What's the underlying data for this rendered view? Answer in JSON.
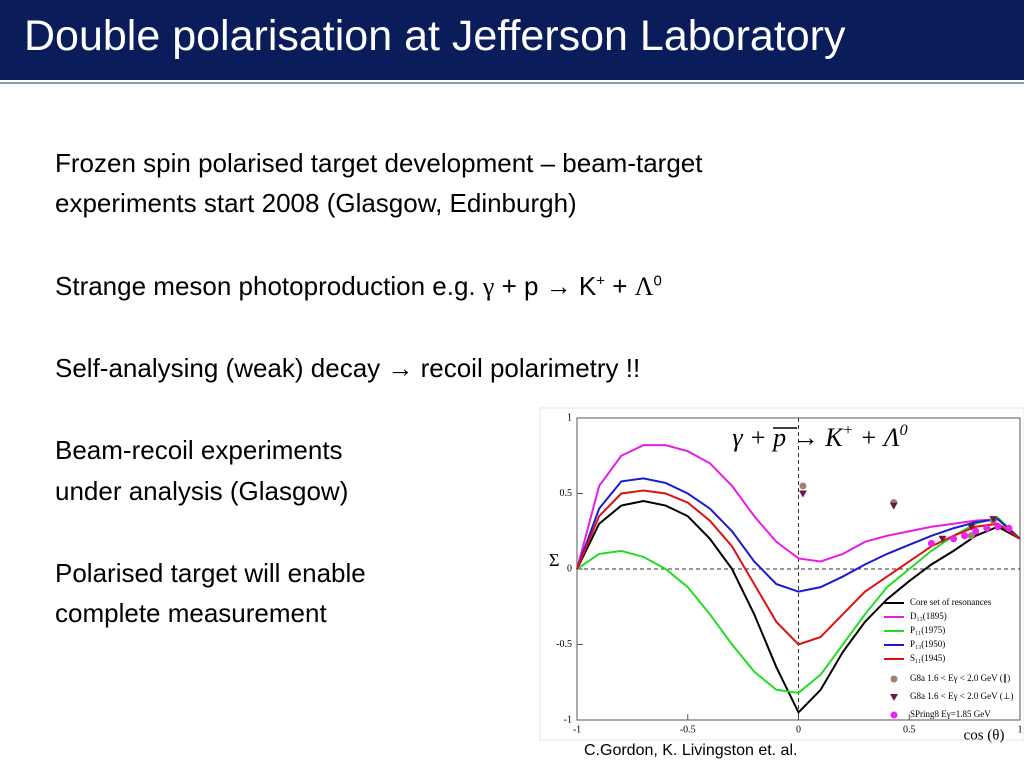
{
  "slide": {
    "title": "Double polarisation at Jefferson Laboratory",
    "paragraphs": [
      [
        [
          "Frozen spin polarised target development  – beam-target"
        ],
        [
          "experiments start 2008 (Glasgow, Edinburgh)"
        ]
      ],
      [
        [
          "Strange meson photoproduction e.g. ",
          "γ",
          " + p → K",
          "+",
          " + ",
          "Λ",
          "0"
        ]
      ],
      [
        [
          "Self-analysing (weak) decay → recoil polarimetry !!"
        ]
      ],
      [
        [
          "Beam-recoil experiments"
        ],
        [
          "under analysis (Glasgow)"
        ]
      ],
      [
        [
          "Polarised target will enable"
        ],
        [
          "complete measurement"
        ]
      ]
    ],
    "caption": "C.Gordon, K. Livingston et. al."
  },
  "chart_data": {
    "type": "line",
    "title_parts": [
      "γ",
      " + p → ",
      "K",
      "+",
      " + ",
      "Λ",
      "0"
    ],
    "ylabel": "Σ",
    "xlabel": "cos (θ)",
    "xlim": [
      -1,
      1
    ],
    "ylim": [
      -1,
      1
    ],
    "xticks": [
      -1,
      -0.5,
      0,
      0.5,
      1
    ],
    "yticks": [
      -1,
      -0.5,
      0,
      0.5,
      1
    ],
    "x": [
      -1,
      -0.9,
      -0.8,
      -0.7,
      -0.6,
      -0.5,
      -0.4,
      -0.3,
      -0.2,
      -0.1,
      0,
      0.1,
      0.2,
      0.3,
      0.4,
      0.5,
      0.6,
      0.7,
      0.8,
      0.9,
      1
    ],
    "series": [
      {
        "name": "Core set of resonances",
        "color": "#000000",
        "values": [
          0,
          0.3,
          0.42,
          0.45,
          0.42,
          0.35,
          0.2,
          0.0,
          -0.3,
          -0.65,
          -0.95,
          -0.8,
          -0.55,
          -0.35,
          -0.2,
          -0.08,
          0.03,
          0.12,
          0.22,
          0.28,
          0.2
        ]
      },
      {
        "name": "D₁₃(1895)",
        "color": "#e61ee6",
        "values": [
          0,
          0.55,
          0.75,
          0.82,
          0.82,
          0.78,
          0.7,
          0.55,
          0.35,
          0.18,
          0.07,
          0.05,
          0.1,
          0.18,
          0.22,
          0.25,
          0.28,
          0.3,
          0.32,
          0.33,
          0.2
        ]
      },
      {
        "name": "P₁₁(1975)",
        "color": "#22dd22",
        "values": [
          0,
          0.1,
          0.12,
          0.08,
          0,
          -0.12,
          -0.3,
          -0.5,
          -0.68,
          -0.8,
          -0.82,
          -0.7,
          -0.5,
          -0.3,
          -0.12,
          0,
          0.12,
          0.22,
          0.3,
          0.34,
          0.2
        ]
      },
      {
        "name": "P₁₃(1950)",
        "color": "#1a1ad0",
        "values": [
          0,
          0.4,
          0.58,
          0.6,
          0.57,
          0.5,
          0.4,
          0.25,
          0.05,
          -0.1,
          -0.15,
          -0.12,
          -0.05,
          0.03,
          0.1,
          0.16,
          0.22,
          0.27,
          0.31,
          0.33,
          0.2
        ]
      },
      {
        "name": "S₁₁(1945)",
        "color": "#dd1111",
        "values": [
          0,
          0.35,
          0.5,
          0.52,
          0.5,
          0.44,
          0.32,
          0.15,
          -0.1,
          -0.35,
          -0.5,
          -0.45,
          -0.3,
          -0.15,
          -0.05,
          0.05,
          0.15,
          0.22,
          0.28,
          0.3,
          0.2
        ]
      }
    ],
    "points": [
      {
        "name": "G8a 1.6 < Eγ < 2.0 GeV (∥)",
        "color": "#a08070",
        "marker": "circle",
        "x": [
          0.02,
          0.43,
          0.78,
          0.88
        ],
        "y": [
          0.55,
          0.44,
          0.22,
          0.32
        ]
      },
      {
        "name": "G8a 1.6 < Eγ < 2.0 GeV (⊥)",
        "color": "#6a1a4a",
        "marker": "triangle",
        "x": [
          0.02,
          0.43,
          0.65,
          0.78,
          0.88
        ],
        "y": [
          0.5,
          0.42,
          0.2,
          0.28,
          0.33
        ]
      },
      {
        "name": "SPring8  Eγ=1.85 GeV",
        "color": "#ee22ee",
        "marker": "circle",
        "x": [
          0.6,
          0.7,
          0.75,
          0.8,
          0.85,
          0.9,
          0.95
        ],
        "y": [
          0.17,
          0.2,
          0.22,
          0.25,
          0.27,
          0.28,
          0.27
        ]
      }
    ]
  }
}
